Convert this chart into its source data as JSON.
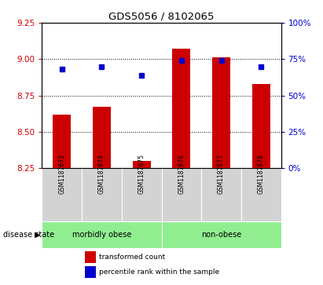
{
  "title": "GDS5056 / 8102065",
  "samples": [
    "GSM1187673",
    "GSM1187674",
    "GSM1187675",
    "GSM1187676",
    "GSM1187677",
    "GSM1187678"
  ],
  "transformed_count": [
    8.62,
    8.67,
    8.3,
    9.07,
    9.01,
    8.83
  ],
  "percentile_rank": [
    68,
    70,
    64,
    74,
    74,
    70
  ],
  "ylim_left": [
    8.25,
    9.25
  ],
  "ylim_right": [
    0,
    100
  ],
  "yticks_left": [
    8.25,
    8.5,
    8.75,
    9.0,
    9.25
  ],
  "yticks_right": [
    0,
    25,
    50,
    75,
    100
  ],
  "bar_color": "#cc0000",
  "dot_color": "#0000cc",
  "bar_bottom": 8.25,
  "group_ranges": [
    [
      0,
      2
    ],
    [
      3,
      5
    ]
  ],
  "group_labels": [
    "morbidly obese",
    "non-obese"
  ],
  "group_color": "#90ee90",
  "sample_box_color": "#d3d3d3",
  "disease_state_label": "disease state",
  "legend_bar_label": "transformed count",
  "legend_dot_label": "percentile rank within the sample",
  "tick_color_left": "#cc0000",
  "tick_color_right": "#0000cc",
  "background_color": "#ffffff"
}
